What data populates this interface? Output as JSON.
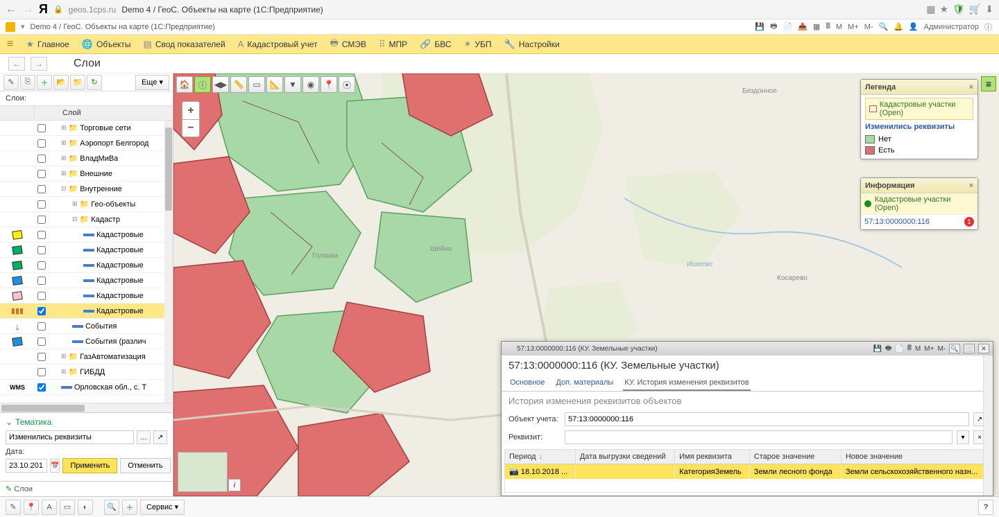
{
  "browser": {
    "url_host": "geos.1cps.ru",
    "page_title": "Demo 4 / ГеоС. Объекты на карте (1С:Предприятие)"
  },
  "onec": {
    "tab_title": "Demo 4 / ГеоС. Объекты на карте  (1С:Предприятие)",
    "toolbar_m": "M",
    "toolbar_mplus": "M+",
    "toolbar_mminus": "M-",
    "user_label": "Администратор"
  },
  "main_menu": {
    "items": [
      {
        "label": "Главное",
        "icon": "★"
      },
      {
        "label": "Объекты",
        "icon": "🌐"
      },
      {
        "label": "Свод показателей",
        "icon": "▤"
      },
      {
        "label": "Кадастровый учет",
        "icon": "A"
      },
      {
        "label": "СМЭВ",
        "icon": "🖶"
      },
      {
        "label": "МПР",
        "icon": "⠿"
      },
      {
        "label": "БВС",
        "icon": "🔗"
      },
      {
        "label": "УБП",
        "icon": "✶"
      },
      {
        "label": "Настройки",
        "icon": "🔧"
      }
    ]
  },
  "page": {
    "title": "Слои"
  },
  "sidebar": {
    "more_label": "Еще",
    "layers_label": "Слои:",
    "column_header": "Слой",
    "tree": [
      {
        "indent": 0,
        "icon": "folder",
        "label": "Торговые сети",
        "expand": "+",
        "checked": false
      },
      {
        "indent": 0,
        "icon": "folder",
        "label": "Аэропорт Белгород",
        "expand": "+",
        "checked": false
      },
      {
        "indent": 0,
        "icon": "folder",
        "label": "ВладМиВа",
        "expand": "+",
        "checked": false
      },
      {
        "indent": 0,
        "icon": "folder",
        "label": "Внешние",
        "expand": "+",
        "checked": false
      },
      {
        "indent": 0,
        "icon": "folder",
        "label": "Внутренние",
        "expand": "−",
        "checked": false
      },
      {
        "indent": 1,
        "icon": "folder",
        "label": "Гео-объекты",
        "expand": "+",
        "checked": false
      },
      {
        "indent": 1,
        "icon": "folder",
        "label": "Кадастр",
        "expand": "−",
        "checked": false
      },
      {
        "indent": 2,
        "icon": "swatch",
        "swatch_bg": "#fff000",
        "label": "Кадастровые",
        "checked": false
      },
      {
        "indent": 2,
        "icon": "swatch",
        "swatch_bg": "#00b060",
        "label": "Кадастровые",
        "checked": false
      },
      {
        "indent": 2,
        "icon": "swatch",
        "swatch_bg": "#00b060",
        "label": "Кадастровые",
        "checked": false
      },
      {
        "indent": 2,
        "icon": "swatch",
        "swatch_bg": "#2090e0",
        "label": "Кадастровые",
        "checked": false
      },
      {
        "indent": 2,
        "icon": "swatch",
        "swatch_bg": "#ffc0d0",
        "label": "Кадастровые",
        "checked": false
      },
      {
        "indent": 2,
        "icon": "bars",
        "label": "Кадастровые",
        "checked": true,
        "selected": true
      },
      {
        "indent": 1,
        "icon": "arrow-green",
        "label": "События",
        "checked": false
      },
      {
        "indent": 1,
        "icon": "swatch",
        "swatch_bg": "#2090e0",
        "label": "События (различ",
        "checked": false
      },
      {
        "indent": 0,
        "icon": "folder",
        "label": "ГазАвтоматизация",
        "expand": "+",
        "checked": false
      },
      {
        "indent": 0,
        "icon": "folder",
        "label": "ГИБДД",
        "expand": "+",
        "checked": false
      },
      {
        "indent": 0,
        "icon": "wms",
        "label": "Орловская обл., с. Т",
        "checked": true
      }
    ]
  },
  "thematic": {
    "title": "Тематика",
    "theme_value": "Изменились реквизиты",
    "date_label": "Дата:",
    "date_value": "23.10.201",
    "apply_label": "Применить",
    "cancel_label": "Отменить",
    "tab_label": "Слои"
  },
  "bottom": {
    "service_label": "Сервис"
  },
  "map": {
    "colors": {
      "land_bg": "#f0ede4",
      "forest": "#e8edd8",
      "green_parcel": "#a8d8a8",
      "green_stroke": "#5aa05a",
      "red_parcel": "#e07070",
      "red_stroke": "#a04040",
      "road": "#d6d0c0",
      "river": "#a8c8e0"
    },
    "labels": {
      "golyanka": "Голянка",
      "sheino": "Шейно",
      "bezdonnoe": "Бездонное",
      "kosarevo": "Косарево",
      "ishevo": "Ишеево"
    }
  },
  "legend": {
    "title": "Легенда",
    "layer_name": "Кадастровые участки (Open)",
    "section_title": "Изменились реквизиты",
    "items": [
      {
        "label": "Нет",
        "color": "#a8d8a8"
      },
      {
        "label": "Есть",
        "color": "#e07070"
      }
    ]
  },
  "info": {
    "title": "Информация",
    "layer_name": "Кадастровые участки (Open)",
    "object_id": "57:13:0000000:116",
    "badge": "1"
  },
  "detail": {
    "window_title": "57:13:0000000:116 (КУ. Земельные участки)",
    "toolbar_m": "M",
    "toolbar_mplus": "M+",
    "toolbar_mminus": "M-",
    "heading": "57:13:0000000:116 (КУ. Земельные участки)",
    "tabs": [
      {
        "label": "Основное"
      },
      {
        "label": "Доп. материалы"
      },
      {
        "label": "КУ. История изменения реквизитов",
        "active": true
      }
    ],
    "subtitle": "История изменения реквизитов объектов",
    "object_label": "Объект учета:",
    "object_value": "57:13:0000000:116",
    "requisite_label": "Реквизит:",
    "requisite_value": "",
    "columns": [
      "Период",
      "Дата выгрузки сведений",
      "Имя реквизита",
      "Старое значение",
      "Новое значение"
    ],
    "rows": [
      {
        "period": "18.10.2018 ...",
        "date": "",
        "name": "КатегорияЗемель",
        "old": "Земли лесного фонда",
        "new": "Земли сельскохозяйственного назн..."
      }
    ]
  }
}
